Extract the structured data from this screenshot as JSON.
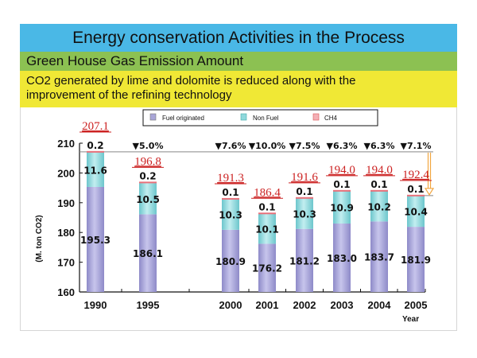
{
  "slide": {
    "title": "Energy conservation Activities in the Process",
    "subtitle": "Green House Gas Emission Amount",
    "description_line1": "CO2 generated by lime and dolomite is reduced along with the",
    "description_line2": "improvement of the refining technology"
  },
  "colors": {
    "title_band": "#4ab8e6",
    "subtitle_band": "#8cc152",
    "description_band": "#f0e835",
    "fuel_originated": "#a9a6d8",
    "non_fuel": "#8fd8dc",
    "ch4": "#e8707a",
    "total_label": "#cc2222",
    "reduction_arrow": "#f2a640"
  },
  "chart_data": {
    "type": "bar",
    "stacked": true,
    "title": "Green House Gas Emission Amount",
    "xlabel": "Year",
    "ylabel": "(M. ton  CO2)",
    "ylim": [
      160,
      210
    ],
    "yticks": [
      160,
      170,
      180,
      190,
      200,
      210
    ],
    "categories": [
      "1990",
      "1995",
      "2000",
      "2001",
      "2002",
      "2003",
      "2004",
      "2005"
    ],
    "series": [
      {
        "name": "Fuel originated",
        "values": [
          195.3,
          186.1,
          180.9,
          176.2,
          181.2,
          183.0,
          183.7,
          181.9
        ]
      },
      {
        "name": "Non Fuel",
        "values": [
          11.6,
          10.5,
          10.3,
          10.1,
          10.3,
          10.9,
          10.2,
          10.4
        ]
      },
      {
        "name": "CH4",
        "values": [
          0.2,
          0.2,
          0.1,
          0.1,
          0.1,
          0.1,
          0.1,
          0.1
        ]
      }
    ],
    "totals": [
      "207.1",
      "196.8",
      "191.3",
      "186.4",
      "191.6",
      "194.0",
      "194.0",
      "192.4"
    ],
    "reduction_vs_1990": [
      "",
      "▼5.0%",
      "▼7.6%",
      "▼10.0%",
      "▼7.5%",
      "▼6.3%",
      "▼6.3%",
      "▼7.1%"
    ],
    "legend": [
      "Fuel originated",
      "Non Fuel",
      "CH4"
    ],
    "legend_position": "top-center",
    "grid": false
  }
}
